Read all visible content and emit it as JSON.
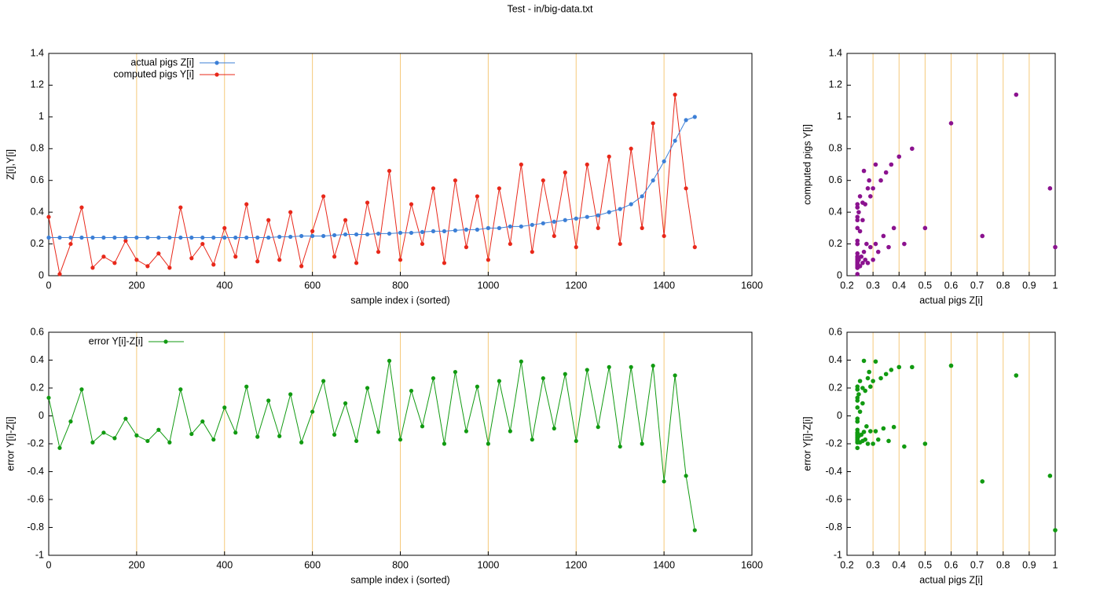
{
  "title": "Test - in/big-data.txt",
  "chart_data": [
    {
      "type": "line",
      "x_label": "sample index i (sorted)",
      "y_label": "Z[i],Y[i]",
      "xlim": [
        0,
        1600
      ],
      "ylim": [
        0,
        1.4
      ],
      "xticks": [
        0,
        200,
        400,
        600,
        800,
        1000,
        1200,
        1400,
        1600
      ],
      "yticks": [
        0,
        0.2,
        0.4,
        0.6,
        0.8,
        1,
        1.2,
        1.4
      ],
      "grid": "x",
      "grid_color": "#f5c97a",
      "legend": "top-left",
      "x": [
        0,
        25,
        50,
        75,
        100,
        125,
        150,
        175,
        200,
        225,
        250,
        275,
        300,
        325,
        350,
        375,
        400,
        425,
        450,
        475,
        500,
        525,
        550,
        575,
        600,
        625,
        650,
        675,
        700,
        725,
        750,
        775,
        800,
        825,
        850,
        875,
        900,
        925,
        950,
        975,
        1000,
        1025,
        1050,
        1075,
        1100,
        1125,
        1150,
        1175,
        1200,
        1225,
        1250,
        1275,
        1300,
        1325,
        1350,
        1375,
        1400,
        1425,
        1450,
        1470
      ],
      "series": [
        {
          "name": "actual pigs Z[i]",
          "color": "#3c7fd6",
          "values": [
            0.24,
            0.24,
            0.24,
            0.24,
            0.24,
            0.24,
            0.24,
            0.24,
            0.24,
            0.24,
            0.24,
            0.24,
            0.24,
            0.24,
            0.24,
            0.24,
            0.24,
            0.24,
            0.24,
            0.24,
            0.24,
            0.245,
            0.245,
            0.25,
            0.25,
            0.25,
            0.255,
            0.26,
            0.26,
            0.26,
            0.265,
            0.265,
            0.27,
            0.27,
            0.275,
            0.28,
            0.28,
            0.285,
            0.29,
            0.29,
            0.3,
            0.3,
            0.31,
            0.31,
            0.32,
            0.33,
            0.34,
            0.35,
            0.36,
            0.37,
            0.38,
            0.4,
            0.42,
            0.45,
            0.5,
            0.6,
            0.72,
            0.85,
            0.98,
            1
          ]
        },
        {
          "name": "computed pigs Y[i]",
          "color": "#e8281a",
          "values": [
            0.37,
            0.01,
            0.2,
            0.43,
            0.05,
            0.12,
            0.08,
            0.22,
            0.1,
            0.06,
            0.14,
            0.05,
            0.43,
            0.11,
            0.2,
            0.07,
            0.3,
            0.12,
            0.45,
            0.09,
            0.35,
            0.1,
            0.4,
            0.06,
            0.28,
            0.5,
            0.12,
            0.35,
            0.08,
            0.46,
            0.15,
            0.66,
            0.1,
            0.45,
            0.2,
            0.55,
            0.08,
            0.6,
            0.18,
            0.5,
            0.1,
            0.55,
            0.2,
            0.7,
            0.15,
            0.6,
            0.25,
            0.65,
            0.18,
            0.7,
            0.3,
            0.75,
            0.2,
            0.8,
            0.3,
            0.96,
            0.25,
            1.14,
            0.55,
            0.18
          ]
        }
      ]
    },
    {
      "type": "scatter",
      "x_label": "actual pigs Z[i]",
      "y_label": "computed pigs Y[i]",
      "xlim": [
        0.2,
        1
      ],
      "ylim": [
        0,
        1.4
      ],
      "xticks": [
        0.2,
        0.3,
        0.4,
        0.5,
        0.6,
        0.7,
        0.8,
        0.9,
        1
      ],
      "yticks": [
        0,
        0.2,
        0.4,
        0.6,
        0.8,
        1,
        1.2,
        1.4
      ],
      "grid": "x",
      "grid_color": "#f5c97a",
      "color": "#8b128f",
      "x": [
        0.24,
        0.24,
        0.24,
        0.24,
        0.24,
        0.24,
        0.24,
        0.24,
        0.24,
        0.24,
        0.24,
        0.24,
        0.24,
        0.24,
        0.24,
        0.24,
        0.24,
        0.24,
        0.24,
        0.24,
        0.24,
        0.245,
        0.245,
        0.25,
        0.25,
        0.25,
        0.255,
        0.26,
        0.26,
        0.26,
        0.265,
        0.265,
        0.27,
        0.27,
        0.275,
        0.28,
        0.28,
        0.285,
        0.29,
        0.29,
        0.3,
        0.3,
        0.31,
        0.31,
        0.32,
        0.33,
        0.34,
        0.35,
        0.36,
        0.37,
        0.38,
        0.4,
        0.42,
        0.45,
        0.5,
        0.6,
        0.72,
        0.85,
        0.98,
        1
      ],
      "values": [
        0.37,
        0.01,
        0.2,
        0.43,
        0.05,
        0.12,
        0.08,
        0.22,
        0.1,
        0.06,
        0.14,
        0.05,
        0.43,
        0.11,
        0.2,
        0.07,
        0.3,
        0.12,
        0.45,
        0.09,
        0.35,
        0.1,
        0.4,
        0.06,
        0.28,
        0.5,
        0.12,
        0.35,
        0.08,
        0.46,
        0.15,
        0.66,
        0.1,
        0.45,
        0.2,
        0.55,
        0.08,
        0.6,
        0.18,
        0.5,
        0.1,
        0.55,
        0.2,
        0.7,
        0.15,
        0.6,
        0.25,
        0.65,
        0.18,
        0.7,
        0.3,
        0.75,
        0.2,
        0.8,
        0.3,
        0.96,
        0.25,
        1.14,
        0.55,
        0.18
      ]
    },
    {
      "type": "line",
      "x_label": "sample index i (sorted)",
      "y_label": "error Y[i]-Z[i]",
      "xlim": [
        0,
        1600
      ],
      "ylim": [
        -1,
        0.6
      ],
      "xticks": [
        0,
        200,
        400,
        600,
        800,
        1000,
        1200,
        1400,
        1600
      ],
      "yticks": [
        -1,
        -0.8,
        -0.6,
        -0.4,
        -0.2,
        0,
        0.2,
        0.4,
        0.6
      ],
      "grid": "x",
      "grid_color": "#f5c97a",
      "legend": "top-left",
      "x": [
        0,
        25,
        50,
        75,
        100,
        125,
        150,
        175,
        200,
        225,
        250,
        275,
        300,
        325,
        350,
        375,
        400,
        425,
        450,
        475,
        500,
        525,
        550,
        575,
        600,
        625,
        650,
        675,
        700,
        725,
        750,
        775,
        800,
        825,
        850,
        875,
        900,
        925,
        950,
        975,
        1000,
        1025,
        1050,
        1075,
        1100,
        1125,
        1150,
        1175,
        1200,
        1225,
        1250,
        1275,
        1300,
        1325,
        1350,
        1375,
        1400,
        1425,
        1450,
        1470
      ],
      "series": [
        {
          "name": "error Y[i]-Z[i]",
          "color": "#119a11",
          "values": [
            0.13,
            -0.23,
            -0.04,
            0.19,
            -0.19,
            -0.12,
            -0.16,
            -0.02,
            -0.14,
            -0.18,
            -0.1,
            -0.19,
            0.19,
            -0.13,
            -0.04,
            -0.17,
            0.06,
            -0.12,
            0.21,
            -0.15,
            0.11,
            -0.145,
            0.155,
            -0.19,
            0.03,
            0.25,
            -0.135,
            0.09,
            -0.18,
            0.2,
            -0.115,
            0.395,
            -0.17,
            0.18,
            -0.075,
            0.27,
            -0.2,
            0.315,
            -0.11,
            0.21,
            -0.2,
            0.25,
            -0.11,
            0.39,
            -0.17,
            0.27,
            -0.09,
            0.3,
            -0.18,
            0.33,
            -0.08,
            0.35,
            -0.22,
            0.35,
            -0.2,
            0.36,
            -0.47,
            0.29,
            -0.43,
            -0.82
          ]
        }
      ]
    },
    {
      "type": "scatter",
      "x_label": "actual pigs Z[i]",
      "y_label": "error Y[i]-Z[i]",
      "xlim": [
        0.2,
        1
      ],
      "ylim": [
        -1,
        0.6
      ],
      "xticks": [
        0.2,
        0.3,
        0.4,
        0.5,
        0.6,
        0.7,
        0.8,
        0.9,
        1
      ],
      "yticks": [
        -1,
        -0.8,
        -0.6,
        -0.4,
        -0.2,
        0,
        0.2,
        0.4,
        0.6
      ],
      "grid": "x",
      "grid_color": "#f5c97a",
      "color": "#119a11",
      "x": [
        0.24,
        0.24,
        0.24,
        0.24,
        0.24,
        0.24,
        0.24,
        0.24,
        0.24,
        0.24,
        0.24,
        0.24,
        0.24,
        0.24,
        0.24,
        0.24,
        0.24,
        0.24,
        0.24,
        0.24,
        0.24,
        0.245,
        0.245,
        0.25,
        0.25,
        0.25,
        0.255,
        0.26,
        0.26,
        0.26,
        0.265,
        0.265,
        0.27,
        0.27,
        0.275,
        0.28,
        0.28,
        0.285,
        0.29,
        0.29,
        0.3,
        0.3,
        0.31,
        0.31,
        0.32,
        0.33,
        0.34,
        0.35,
        0.36,
        0.37,
        0.38,
        0.4,
        0.42,
        0.45,
        0.5,
        0.6,
        0.72,
        0.85,
        0.98,
        1
      ],
      "values": [
        0.13,
        -0.23,
        -0.04,
        0.19,
        -0.19,
        -0.12,
        -0.16,
        -0.02,
        -0.14,
        -0.18,
        -0.1,
        -0.19,
        0.19,
        -0.13,
        -0.04,
        -0.17,
        0.06,
        -0.12,
        0.21,
        -0.15,
        0.11,
        -0.145,
        0.155,
        -0.19,
        0.03,
        0.25,
        -0.135,
        0.09,
        -0.18,
        0.2,
        -0.115,
        0.395,
        -0.17,
        0.18,
        -0.075,
        0.27,
        -0.2,
        0.315,
        -0.11,
        0.21,
        -0.2,
        0.25,
        -0.11,
        0.39,
        -0.17,
        0.27,
        -0.09,
        0.3,
        -0.18,
        0.33,
        -0.08,
        0.35,
        -0.22,
        0.35,
        -0.2,
        0.36,
        -0.47,
        0.29,
        -0.43,
        -0.82
      ]
    }
  ]
}
